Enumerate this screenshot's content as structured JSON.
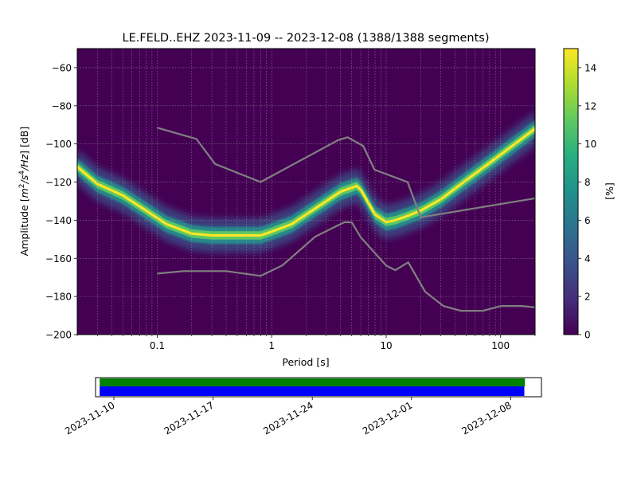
{
  "chart_data": [
    {
      "type": "heatmap",
      "title": "LE.FELD..EHZ   2023-11-09 -- 2023-12-08  (1388/1388 segments)",
      "xlabel": "Period [s]",
      "ylabel_parts": [
        "Amplitude [",
        "m",
        "2",
        "/",
        "s",
        "4",
        "/",
        "Hz",
        "] [dB]"
      ],
      "xscale": "log",
      "xlim": [
        0.02,
        200
      ],
      "ylim": [
        -200,
        -50
      ],
      "x_ticks": [
        {
          "value": 0.1,
          "label": "0.1"
        },
        {
          "value": 1,
          "label": "1"
        },
        {
          "value": 10,
          "label": "10"
        },
        {
          "value": 100,
          "label": "100"
        }
      ],
      "y_ticks": [
        {
          "value": -60,
          "label": "−60"
        },
        {
          "value": -80,
          "label": "−80"
        },
        {
          "value": -100,
          "label": "−100"
        },
        {
          "value": -120,
          "label": "−120"
        },
        {
          "value": -140,
          "label": "−140"
        },
        {
          "value": -160,
          "label": "−160"
        },
        {
          "value": -180,
          "label": "−180"
        },
        {
          "value": -200,
          "label": "−200"
        }
      ],
      "grid": true,
      "colormap": "viridis",
      "background_color": "#440154",
      "colorbar": {
        "label": "[%]",
        "range": [
          0,
          15
        ],
        "ticks": [
          {
            "value": 0,
            "label": "0"
          },
          {
            "value": 2,
            "label": "2"
          },
          {
            "value": 4,
            "label": "4"
          },
          {
            "value": 6,
            "label": "6"
          },
          {
            "value": 8,
            "label": "8"
          },
          {
            "value": 10,
            "label": "10"
          },
          {
            "value": 12,
            "label": "12"
          },
          {
            "value": 14,
            "label": "14"
          }
        ]
      },
      "mode_curve": {
        "period": [
          0.02,
          0.03,
          0.05,
          0.08,
          0.12,
          0.2,
          0.3,
          0.5,
          0.8,
          1.0,
          1.5,
          2.0,
          3.0,
          4.0,
          5.0,
          5.5,
          6.0,
          7.0,
          8.0,
          10.0,
          12.0,
          15.0,
          20.0,
          30.0,
          50.0,
          80.0,
          120.0,
          200.0
        ],
        "amplitude": [
          -112,
          -121,
          -127,
          -135,
          -142,
          -147,
          -148,
          -148,
          -148,
          -146,
          -142,
          -137,
          -130,
          -125,
          -123,
          -122,
          -124,
          -131,
          -137,
          -141,
          -140,
          -138,
          -135,
          -129,
          -119,
          -110,
          -102,
          -92
        ]
      },
      "noise_models": [
        {
          "period": [
            0.1,
            0.17,
            0.4,
            0.8,
            1.24,
            2.4,
            4.3,
            5.0,
            6.0,
            10.0,
            12.0,
            15.6,
            21.9,
            31.6,
            45.0,
            70.0,
            101.0,
            154.0,
            200.0
          ],
          "amplitude": [
            -168,
            -166.7,
            -166.7,
            -169.2,
            -163.7,
            -148.6,
            -141.1,
            -141.1,
            -149.0,
            -163.8,
            -166.2,
            -162.1,
            -177.5,
            -185.0,
            -187.5,
            -187.5,
            -185.0,
            -185.0,
            -185.7
          ]
        },
        {
          "period": [
            0.1,
            0.22,
            0.32,
            0.8,
            3.8,
            4.6,
            6.3,
            7.9,
            15.4,
            20.0,
            200.0
          ],
          "amplitude": [
            -91.5,
            -97.4,
            -110.5,
            -120.0,
            -98.0,
            -96.5,
            -101.0,
            -113.5,
            -120.0,
            -138.5,
            -128.5
          ]
        }
      ]
    },
    {
      "type": "timeline",
      "series": [
        {
          "color": "#008000",
          "start": "2023-11-09T00:00",
          "end": "2023-12-09T00:00"
        },
        {
          "color": "#0000ff",
          "start": "2023-11-09T00:00",
          "end": "2023-12-08T23:00"
        }
      ],
      "xlim": [
        "2023-11-08T17:00",
        "2023-12-10T04:00"
      ],
      "x_ticks": [
        {
          "value": "2023-11-10",
          "label": "2023-11-10"
        },
        {
          "value": "2023-11-17",
          "label": "2023-11-17"
        },
        {
          "value": "2023-11-24",
          "label": "2023-11-24"
        },
        {
          "value": "2023-12-01",
          "label": "2023-12-01"
        },
        {
          "value": "2023-12-08",
          "label": "2023-12-08"
        }
      ]
    }
  ]
}
